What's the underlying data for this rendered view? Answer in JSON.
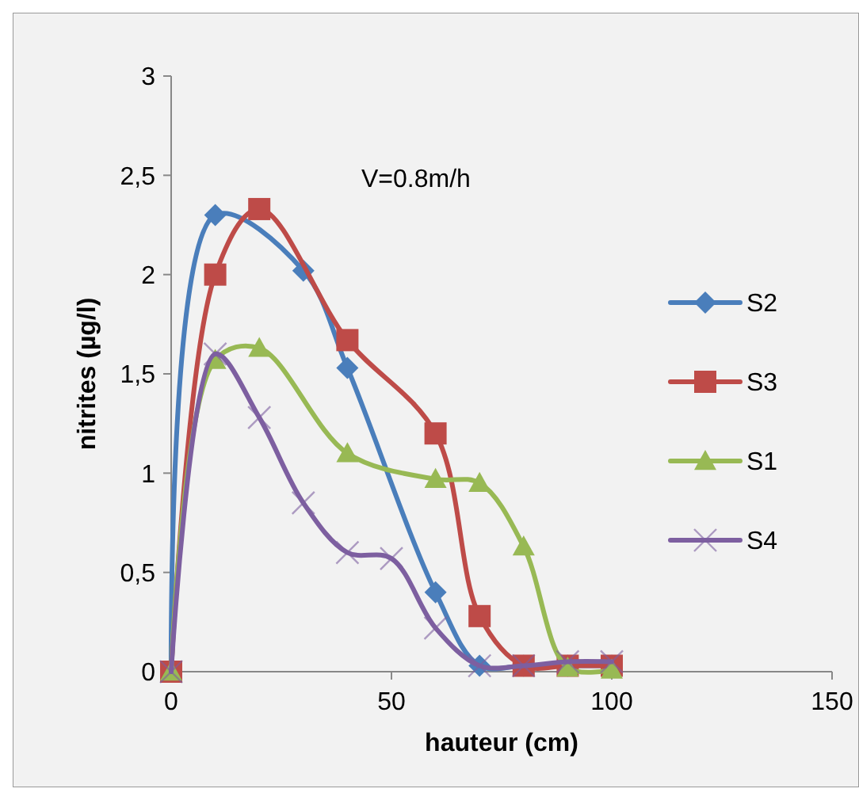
{
  "chart_data": {
    "type": "line",
    "xlabel": "hauteur (cm)",
    "ylabel": "nitrites (µg/l)",
    "annotations": [
      "V=0.8m/h"
    ],
    "xlim": [
      0,
      150
    ],
    "xticks": [
      0,
      50,
      100,
      150
    ],
    "ylim": [
      0,
      3
    ],
    "yticks": [
      0,
      {
        "value": 0.5,
        "label": "0,5"
      },
      1,
      {
        "value": 1.5,
        "label": "1,5"
      },
      2,
      {
        "value": 2.5,
        "label": "2,5"
      },
      3
    ],
    "grid": false,
    "legend": "right",
    "line_style": "solid",
    "series": [
      {
        "name": "S2",
        "color": "#4a7ebb",
        "marker": "diamond",
        "x": [
          0,
          10,
          30,
          40,
          60,
          70,
          80,
          90,
          100
        ],
        "values": [
          0,
          2.3,
          2.02,
          1.53,
          0.4,
          0.03,
          0.03,
          0.03,
          0.03
        ]
      },
      {
        "name": "S3",
        "color": "#be4b48",
        "marker": "square",
        "x": [
          0,
          10,
          20,
          40,
          60,
          70,
          80,
          90,
          100
        ],
        "values": [
          0,
          2.0,
          2.33,
          1.67,
          1.2,
          0.28,
          0.03,
          0.03,
          0.03
        ]
      },
      {
        "name": "S1",
        "color": "#98b954",
        "marker": "triangle",
        "x": [
          0,
          10,
          20,
          40,
          60,
          70,
          80,
          90,
          100
        ],
        "values": [
          0,
          1.57,
          1.63,
          1.1,
          0.97,
          0.95,
          0.63,
          0.02,
          0.01
        ]
      },
      {
        "name": "S4",
        "color": "#7d5fa0",
        "marker": "cross",
        "x": [
          0,
          10,
          20,
          30,
          40,
          50,
          60,
          70,
          80,
          90,
          100
        ],
        "values": [
          0,
          1.6,
          1.28,
          0.85,
          0.6,
          0.57,
          0.22,
          0.03,
          0.03,
          0.05,
          0.05
        ]
      }
    ]
  }
}
